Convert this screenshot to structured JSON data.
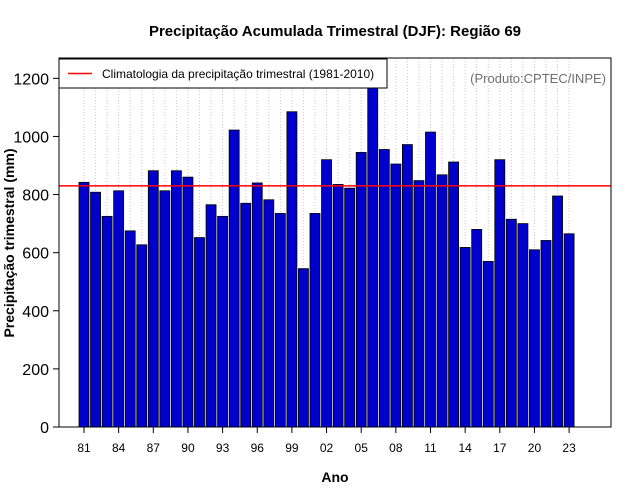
{
  "chart_data": {
    "type": "bar",
    "title": "Precipitação Acumulada Trimestral (DJF): Região 69",
    "xlabel": "Ano",
    "ylabel": "Precipitação trimestral (mm)",
    "credit": "(Produto:CPTEC/INPE)",
    "ylim": [
      0,
      1270
    ],
    "yticks": [
      0,
      200,
      400,
      600,
      800,
      1000,
      1200
    ],
    "ytick_labels": [
      "0",
      "200",
      "400",
      "600",
      "800",
      "1000",
      "1200"
    ],
    "xtick_labels": [
      "81",
      "84",
      "87",
      "90",
      "93",
      "96",
      "99",
      "02",
      "05",
      "08",
      "11",
      "14",
      "17",
      "20",
      "23"
    ],
    "categories": [
      "81",
      "82",
      "83",
      "84",
      "85",
      "86",
      "87",
      "88",
      "89",
      "90",
      "91",
      "92",
      "93",
      "94",
      "95",
      "96",
      "97",
      "98",
      "99",
      "00",
      "01",
      "02",
      "03",
      "04",
      "05",
      "06",
      "07",
      "08",
      "09",
      "10",
      "11",
      "12",
      "13",
      "14",
      "15",
      "16",
      "17",
      "18",
      "19",
      "20",
      "21",
      "22",
      "23"
    ],
    "values": [
      842,
      808,
      725,
      813,
      675,
      627,
      882,
      813,
      882,
      860,
      652,
      765,
      725,
      1022,
      770,
      840,
      782,
      735,
      1085,
      545,
      735,
      920,
      835,
      822,
      945,
      1180,
      955,
      905,
      972,
      848,
      1015,
      868,
      912,
      618,
      680,
      570,
      920,
      715,
      700,
      610,
      642,
      795,
      665
    ],
    "reference_line": {
      "name": "Climatologia da precipitação trimestral (1981-2010)",
      "value": 830,
      "color": "#ff0000"
    },
    "legend": {
      "entries": [
        "Climatologia da precipitação trimestral (1981-2010)"
      ],
      "location": "top-left"
    },
    "bar_color": "#0000cc",
    "grid": "vertical dotted"
  }
}
